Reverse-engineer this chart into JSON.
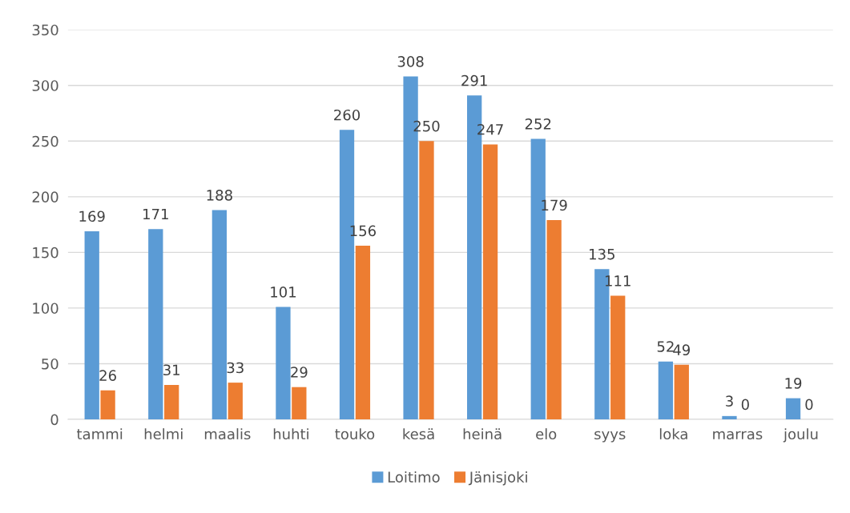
{
  "chart_data": {
    "type": "bar",
    "categories": [
      "tammi",
      "helmi",
      "maalis",
      "huhti",
      "touko",
      "kesä",
      "heinä",
      "elo",
      "syys",
      "loka",
      "marras",
      "joulu"
    ],
    "series": [
      {
        "name": "Loitimo",
        "color": "#5b9bd5",
        "values": [
          169,
          171,
          188,
          101,
          260,
          308,
          291,
          252,
          135,
          52,
          3,
          19
        ]
      },
      {
        "name": "Jänisjoki",
        "color": "#ed7d31",
        "values": [
          26,
          31,
          33,
          29,
          156,
          250,
          247,
          179,
          111,
          49,
          0,
          0
        ]
      }
    ],
    "ylim": [
      0,
      350
    ],
    "yticks": [
      0,
      50,
      100,
      150,
      200,
      250,
      300,
      350
    ],
    "grid": "y",
    "legend": "bottom",
    "data_labels": true
  }
}
